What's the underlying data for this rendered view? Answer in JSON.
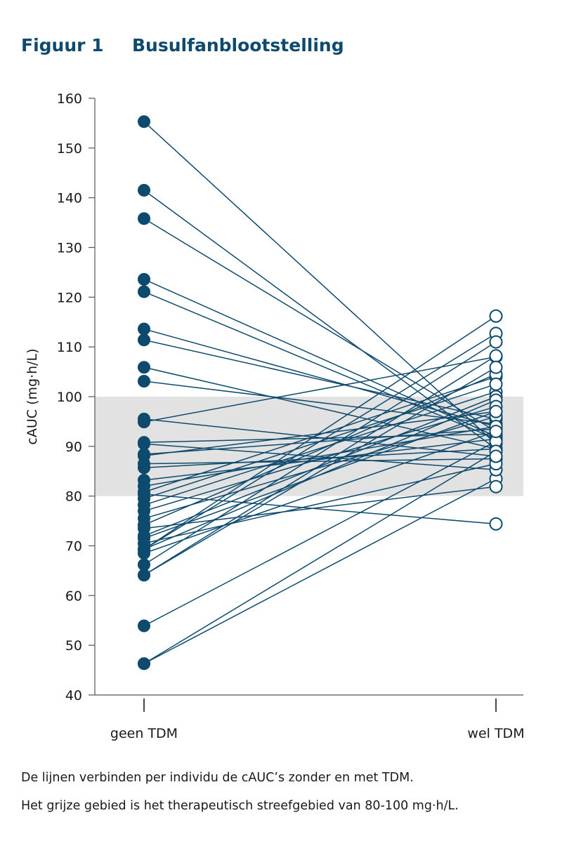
{
  "figure": {
    "label": "Figuur 1",
    "title": "Busulfanblootstelling"
  },
  "caption": {
    "line1": "De lijnen verbinden per individu de cAUC’s zonder en met TDM.",
    "line2": "Het grijze gebied is het therapeutisch streefgebied van 80-100 mg·h/L."
  },
  "colors": {
    "series": "#0e4a6e",
    "band": "#e2e2e2",
    "axis": "#555555"
  },
  "chart_data": {
    "type": "line",
    "ylabel": "cAUC (mg·h/L)",
    "ylim": [
      40,
      160
    ],
    "yticks": [
      40,
      50,
      60,
      70,
      80,
      90,
      100,
      110,
      120,
      130,
      140,
      150,
      160
    ],
    "categories": [
      "geen TDM",
      "wel TDM"
    ],
    "target_band": [
      80,
      100
    ],
    "grid": false,
    "marker_styles": [
      "filled",
      "open"
    ],
    "pairs": [
      [
        155.3,
        90.5
      ],
      [
        141.5,
        89.5
      ],
      [
        135.8,
        93.0
      ],
      [
        123.6,
        92.0
      ],
      [
        121.1,
        91.5
      ],
      [
        113.6,
        94.0
      ],
      [
        111.4,
        95.5
      ],
      [
        105.9,
        89.5
      ],
      [
        103.1,
        94.5
      ],
      [
        94.9,
        108.0
      ],
      [
        90.8,
        92.5
      ],
      [
        88.4,
        93.5
      ],
      [
        88.1,
        97.0
      ],
      [
        85.7,
        89.5
      ],
      [
        83.2,
        91.5
      ],
      [
        80.8,
        104.0
      ],
      [
        80.4,
        74.4
      ],
      [
        78.2,
        101.0
      ],
      [
        75.5,
        96.0
      ],
      [
        74.2,
        104.5
      ],
      [
        72.0,
        100.0
      ],
      [
        69.3,
        99.3
      ],
      [
        69.3,
        116.2
      ],
      [
        69.3,
        112.7
      ],
      [
        66.2,
        111.0
      ],
      [
        64.1,
        108.2
      ],
      [
        64.1,
        105.9
      ],
      [
        53.9,
        91.0
      ],
      [
        46.3,
        89.0
      ],
      [
        46.3,
        83.5
      ],
      [
        90.5,
        85.3
      ],
      [
        86.5,
        87.5
      ],
      [
        79.5,
        102.5
      ],
      [
        77.0,
        98.0
      ],
      [
        73.5,
        81.9
      ],
      [
        70.5,
        86.5
      ],
      [
        82.0,
        94.0
      ],
      [
        95.5,
        88.0
      ],
      [
        71.5,
        97.0
      ],
      [
        68.5,
        93.0
      ]
    ]
  }
}
